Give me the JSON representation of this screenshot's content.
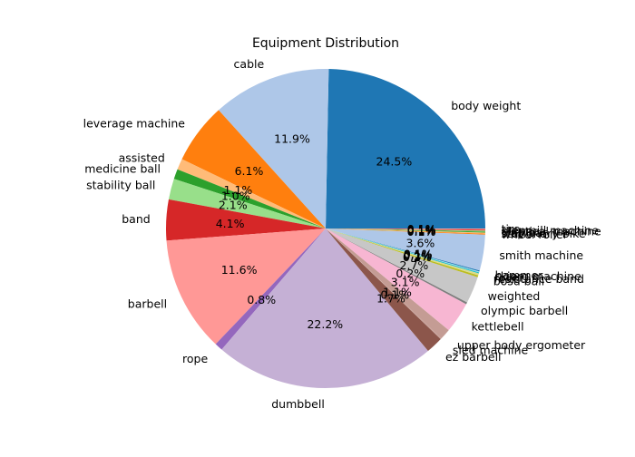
{
  "chart_data": {
    "type": "pie",
    "title": "Equipment Distribution",
    "start_angle_deg": 0,
    "direction": "counterclockwise",
    "slices": [
      {
        "label": "body weight",
        "value": 24.5,
        "pct_label": "24.5%",
        "color": "#1f77b4"
      },
      {
        "label": "cable",
        "value": 11.9,
        "pct_label": "11.9%",
        "color": "#aec7e8"
      },
      {
        "label": "leverage machine",
        "value": 6.1,
        "pct_label": "6.1%",
        "color": "#ff7f0e"
      },
      {
        "label": "assisted",
        "value": 1.1,
        "pct_label": "1.1%",
        "color": "#ffbb78"
      },
      {
        "label": "medicine ball",
        "value": 1.0,
        "pct_label": "1.0%",
        "color": "#2ca02c"
      },
      {
        "label": "stability ball",
        "value": 2.1,
        "pct_label": "2.1%",
        "color": "#98df8a"
      },
      {
        "label": "band",
        "value": 4.1,
        "pct_label": "4.1%",
        "color": "#d62728"
      },
      {
        "label": "barbell",
        "value": 11.6,
        "pct_label": "11.6%",
        "color": "#ff9896"
      },
      {
        "label": "rope",
        "value": 0.8,
        "pct_label": "0.8%",
        "color": "#9467bd"
      },
      {
        "label": "dumbbell",
        "value": 22.2,
        "pct_label": "22.2%",
        "color": "#c5b0d5"
      },
      {
        "label": "ez barbell",
        "value": 1.7,
        "pct_label": "1.7%",
        "color": "#8c564b"
      },
      {
        "label": "sled machine",
        "value": 0.1,
        "pct_label": "0.1%",
        "color": "#c49c94"
      },
      {
        "label": "upper body ergometer",
        "value": 1.1,
        "pct_label": "1.1%",
        "color": "#c49c94"
      },
      {
        "label": "kettlebell",
        "value": 3.1,
        "pct_label": "3.1%",
        "color": "#f7b6d2"
      },
      {
        "label": "olympic barbell",
        "value": 0.2,
        "pct_label": "0.2%",
        "color": "#7f7f7f"
      },
      {
        "label": "weighted",
        "value": 2.7,
        "pct_label": "2.7%",
        "color": "#c7c7c7"
      },
      {
        "label": "bosu ball",
        "value": 0.2,
        "pct_label": "0.2%",
        "color": "#bcbd22"
      },
      {
        "label": "resistance band",
        "value": 0.2,
        "pct_label": "0.2%",
        "color": "#dbdb8d"
      },
      {
        "label": "roller",
        "value": 0.1,
        "pct_label": "0.1%",
        "color": "#17becf"
      },
      {
        "label": "skierg machine",
        "value": 0.1,
        "pct_label": "0.1%",
        "color": "#9edae5"
      },
      {
        "label": "hammer",
        "value": 0.1,
        "pct_label": "0.1%",
        "color": "#1f77b4"
      },
      {
        "label": "smith machine",
        "value": 3.6,
        "pct_label": "3.6%",
        "color": "#aec7e8"
      },
      {
        "label": "wheel roller",
        "value": 0.1,
        "pct_label": "0.1%",
        "color": "#ff7f0e"
      },
      {
        "label": "stationary bike",
        "value": 0.1,
        "pct_label": "0.1%",
        "color": "#ffbb78"
      },
      {
        "label": "trap bar",
        "value": 0.1,
        "pct_label": "0.1%",
        "color": "#2ca02c"
      },
      {
        "label": "elliptical machine",
        "value": 0.1,
        "pct_label": "0.1%",
        "color": "#98df8a"
      },
      {
        "label": "stepmill machine",
        "value": 0.1,
        "pct_label": "0.1%",
        "color": "#d62728"
      },
      {
        "label": "tire",
        "value": 0.1,
        "pct_label": "0.1%",
        "color": "#ff9896"
      }
    ]
  }
}
